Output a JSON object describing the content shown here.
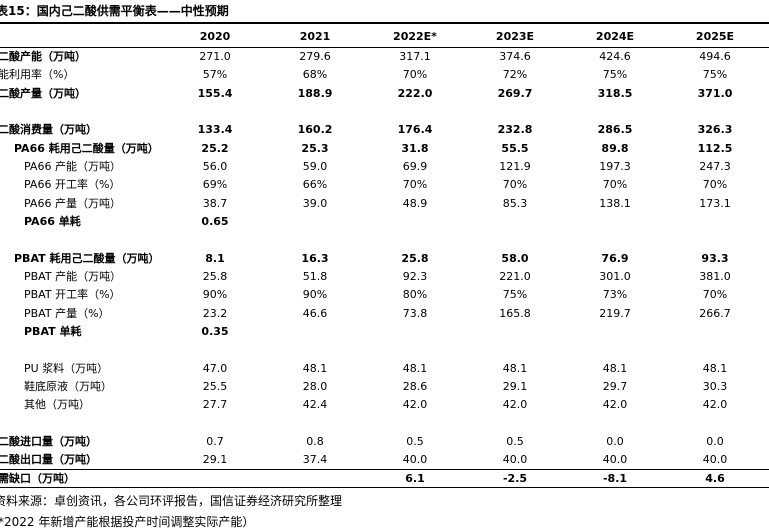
{
  "header": {
    "title": "表15：国内己二酸供需平衡表——中性预期"
  },
  "table": {
    "columns": [
      "2020",
      "2021",
      "2022E*",
      "2023E",
      "2024E",
      "2025E"
    ],
    "sections": [
      [
        {
          "label": "二酸产能（万吨）",
          "bold": "label",
          "level": 0,
          "values": [
            "271.0",
            "279.6",
            "317.1",
            "374.6",
            "424.6",
            "494.6"
          ]
        },
        {
          "label": "能利用率（%）",
          "bold": "none",
          "level": 0,
          "values": [
            "57%",
            "68%",
            "70%",
            "72%",
            "75%",
            "75%"
          ]
        },
        {
          "label": "二酸产量（万吨）",
          "bold": "all",
          "level": 0,
          "values": [
            "155.4",
            "188.9",
            "222.0",
            "269.7",
            "318.5",
            "371.0"
          ]
        }
      ],
      [
        {
          "label": "二酸消费量（万吨）",
          "bold": "all",
          "level": 0,
          "values": [
            "133.4",
            "160.2",
            "176.4",
            "232.8",
            "286.5",
            "326.3"
          ]
        },
        {
          "label": "PA66 耗用己二酸量（万吨）",
          "bold": "all",
          "level": 1,
          "values": [
            "25.2",
            "25.3",
            "31.8",
            "55.5",
            "89.8",
            "112.5"
          ]
        },
        {
          "label": "PA66 产能（万吨）",
          "bold": "none",
          "level": 2,
          "values": [
            "56.0",
            "59.0",
            "69.9",
            "121.9",
            "197.3",
            "247.3"
          ]
        },
        {
          "label": "PA66 开工率（%）",
          "bold": "none",
          "level": 2,
          "values": [
            "69%",
            "66%",
            "70%",
            "70%",
            "70%",
            "70%"
          ]
        },
        {
          "label": "PA66 产量（万吨）",
          "bold": "none",
          "level": 2,
          "values": [
            "38.7",
            "39.0",
            "48.9",
            "85.3",
            "138.1",
            "173.1"
          ]
        },
        {
          "label": "PA66 单耗",
          "bold": "all",
          "level": 2,
          "values": [
            "0.65"
          ]
        }
      ],
      [
        {
          "label": "PBAT 耗用己二酸量（万吨）",
          "bold": "all",
          "level": 1,
          "values": [
            "8.1",
            "16.3",
            "25.8",
            "58.0",
            "76.9",
            "93.3"
          ]
        },
        {
          "label": "PBAT 产能（万吨）",
          "bold": "none",
          "level": 2,
          "values": [
            "25.8",
            "51.8",
            "92.3",
            "221.0",
            "301.0",
            "381.0"
          ]
        },
        {
          "label": "PBAT 开工率（%）",
          "bold": "none",
          "level": 2,
          "values": [
            "90%",
            "90%",
            "80%",
            "75%",
            "73%",
            "70%"
          ]
        },
        {
          "label": "PBAT 产量（%）",
          "bold": "none",
          "level": 2,
          "values": [
            "23.2",
            "46.6",
            "73.8",
            "165.8",
            "219.7",
            "266.7"
          ]
        },
        {
          "label": "PBAT 单耗",
          "bold": "all",
          "level": 2,
          "values": [
            "0.35"
          ]
        }
      ],
      [
        {
          "label": "PU 浆料（万吨）",
          "bold": "none",
          "level": 2,
          "values": [
            "47.0",
            "48.1",
            "48.1",
            "48.1",
            "48.1",
            "48.1"
          ]
        },
        {
          "label": "鞋底原液（万吨）",
          "bold": "none",
          "level": 2,
          "values": [
            "25.5",
            "28.0",
            "28.6",
            "29.1",
            "29.7",
            "30.3"
          ]
        },
        {
          "label": "其他（万吨）",
          "bold": "none",
          "level": 2,
          "values": [
            "27.7",
            "42.4",
            "42.0",
            "42.0",
            "42.0",
            "42.0"
          ]
        }
      ],
      [
        {
          "label": "二酸进口量（万吨）",
          "bold": "label",
          "level": 0,
          "values": [
            "0.7",
            "0.8",
            "0.5",
            "0.5",
            "0.0",
            "0.0"
          ]
        },
        {
          "label": "二酸出口量（万吨）",
          "bold": "label",
          "level": 0,
          "values": [
            "29.1",
            "37.4",
            "40.0",
            "40.0",
            "40.0",
            "40.0"
          ]
        },
        {
          "label": "需缺口（万吨）",
          "bold": "all",
          "level": 0,
          "rule_above": true,
          "values": [
            null,
            null,
            "6.1",
            "-2.5",
            "-8.1",
            "4.6"
          ]
        }
      ]
    ]
  },
  "footer": {
    "source": "资料来源：卓创资讯，各公司环评报告，国信证券经济研究所整理",
    "note": "*2022 年新增产能根据投产时间调整实际产能）"
  }
}
